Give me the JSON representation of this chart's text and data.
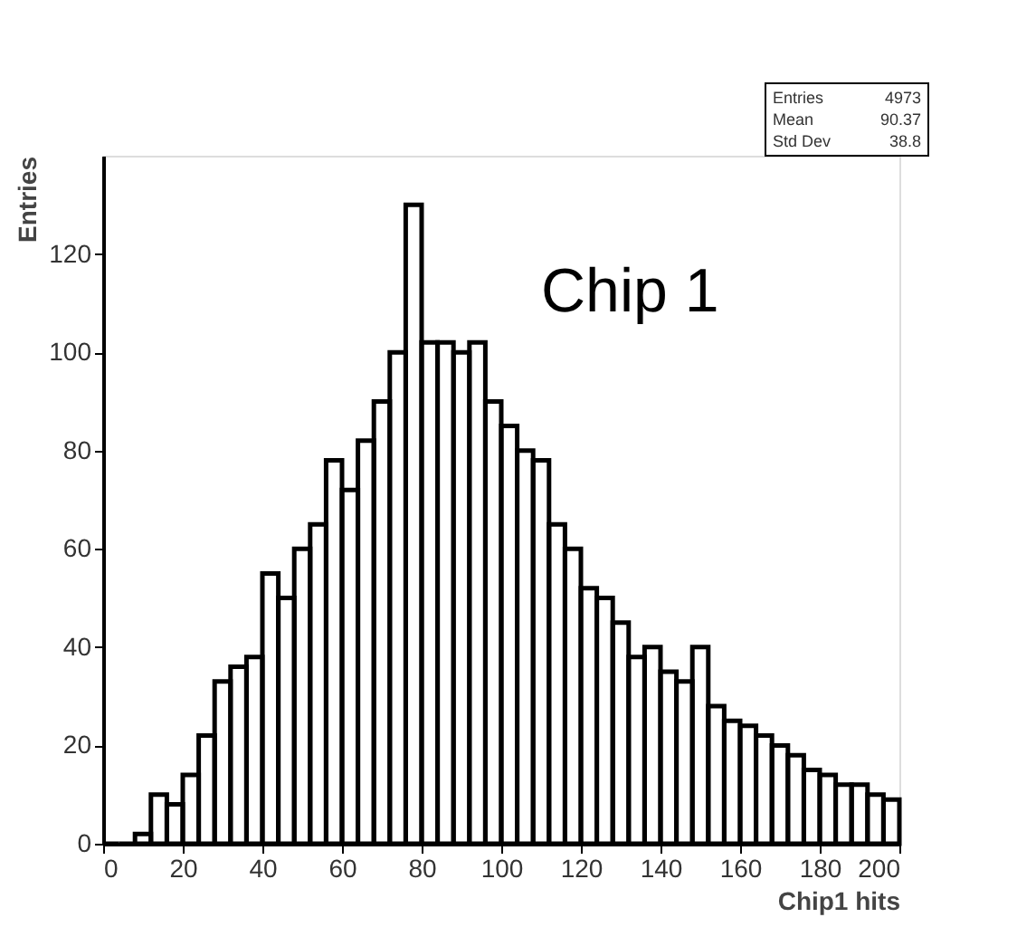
{
  "chart_data": {
    "type": "histogram",
    "xlabel": "Chip1 hits",
    "ylabel": "Entries",
    "color": "#000000",
    "bins": [
      0,
      4,
      8,
      12,
      16,
      20,
      24,
      28,
      32,
      36,
      40,
      44,
      48,
      52,
      56,
      60,
      64,
      68,
      72,
      76,
      80,
      84,
      88,
      92,
      96,
      100,
      104,
      108,
      112,
      116,
      120,
      124,
      128,
      132,
      136,
      140,
      144,
      148,
      152,
      156,
      160,
      164,
      168,
      172,
      176,
      180,
      184,
      188,
      192,
      196,
      200
    ],
    "values": [
      0,
      0,
      2,
      10,
      8,
      14,
      22,
      33,
      36,
      38,
      55,
      50,
      60,
      65,
      78,
      72,
      82,
      90,
      100,
      130,
      102,
      102,
      100,
      102,
      90,
      85,
      80,
      78,
      65,
      60,
      52,
      50,
      45,
      38,
      40,
      35,
      33,
      40,
      28,
      25,
      24,
      22,
      20,
      18,
      15,
      14,
      12,
      12,
      10,
      9
    ],
    "xlim": [
      0,
      200
    ],
    "xticks": [
      0,
      20,
      40,
      60,
      80,
      100,
      120,
      140,
      160,
      180,
      200
    ],
    "ylim": [
      0,
      140
    ],
    "yticks": [
      0,
      20,
      40,
      60,
      80,
      100,
      120
    ],
    "grid": false,
    "annotations": [
      "Chip 1",
      "Entries 4973",
      "Mean 90.37",
      "Std Dev 38.8"
    ]
  }
}
